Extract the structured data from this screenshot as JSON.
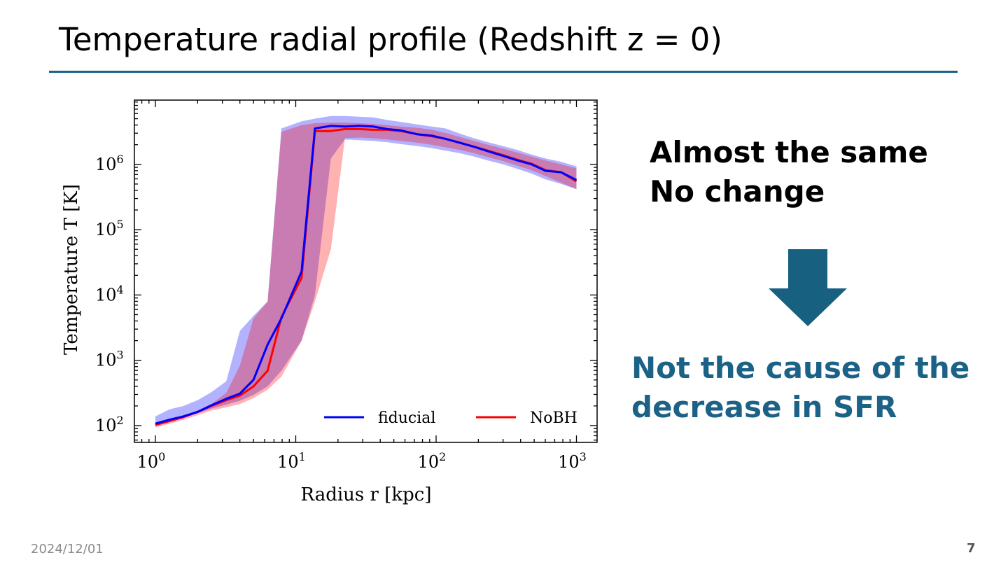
{
  "slide": {
    "title": "Temperature radial profile (Redshift z = 0)",
    "message_line1": "Almost the same",
    "message_line2": "No change",
    "conclusion_line1": "Not the cause of the",
    "conclusion_line2": "decrease in SFR",
    "date": "2024/12/01",
    "page_number": "7",
    "arrow_icon": "arrow-down-icon",
    "colors": {
      "accent": "#1b6286",
      "arrow": "#17607f"
    }
  },
  "chart_data": {
    "type": "line",
    "xlabel": "Radius r [kpc]",
    "ylabel": "Temperature T [K]",
    "xscale": "log",
    "yscale": "log",
    "xlim": [
      0.7,
      1300
    ],
    "ylim": [
      60,
      8000000
    ],
    "x_ticks": [
      {
        "base": "10",
        "exp": "0",
        "value": 1
      },
      {
        "base": "10",
        "exp": "1",
        "value": 10
      },
      {
        "base": "10",
        "exp": "2",
        "value": 100
      },
      {
        "base": "10",
        "exp": "3",
        "value": 1000
      }
    ],
    "y_ticks": [
      {
        "base": "10",
        "exp": "2",
        "value": 100
      },
      {
        "base": "10",
        "exp": "3",
        "value": 1000
      },
      {
        "base": "10",
        "exp": "4",
        "value": 10000
      },
      {
        "base": "10",
        "exp": "5",
        "value": 100000
      },
      {
        "base": "10",
        "exp": "6",
        "value": 1000000
      }
    ],
    "grid": false,
    "legend_position": "bottom-right",
    "x": [
      1,
      1.26,
      1.58,
      2.0,
      2.5,
      3.2,
      4.0,
      5.0,
      6.3,
      7.9,
      11,
      13.7,
      17.8,
      22.4,
      28.2,
      35.5,
      44.7,
      56.2,
      74,
      93,
      117,
      148,
      186,
      234,
      300,
      380,
      479,
      603,
      776,
      1000
    ],
    "series": [
      {
        "name": "fiducial",
        "color": "#0000ff",
        "band_color": "#0000ff",
        "log10_values": [
          2.03,
          2.09,
          2.14,
          2.21,
          2.31,
          2.41,
          2.49,
          2.7,
          3.24,
          3.64,
          4.36,
          6.55,
          6.59,
          6.58,
          6.59,
          6.58,
          6.54,
          6.52,
          6.46,
          6.44,
          6.39,
          6.33,
          6.27,
          6.2,
          6.13,
          6.06,
          6.0,
          5.9,
          5.88,
          5.76
        ],
        "log10_band_upper": [
          2.14,
          2.25,
          2.3,
          2.39,
          2.51,
          2.68,
          3.45,
          3.68,
          3.9,
          6.55,
          6.66,
          6.7,
          6.74,
          6.74,
          6.73,
          6.72,
          6.68,
          6.65,
          6.61,
          6.58,
          6.55,
          6.47,
          6.4,
          6.34,
          6.28,
          6.22,
          6.15,
          6.09,
          6.04,
          5.97
        ],
        "log10_band_lower": [
          2.0,
          2.06,
          2.12,
          2.19,
          2.26,
          2.32,
          2.38,
          2.47,
          2.6,
          2.84,
          3.3,
          4.0,
          6.09,
          6.38,
          6.37,
          6.36,
          6.34,
          6.31,
          6.28,
          6.25,
          6.21,
          6.17,
          6.12,
          6.06,
          6.0,
          5.93,
          5.86,
          5.77,
          5.7,
          5.62
        ]
      },
      {
        "name": "NoBH",
        "color": "#ff0000",
        "band_color": "#ff0000",
        "log10_values": [
          2.01,
          2.07,
          2.13,
          2.21,
          2.3,
          2.39,
          2.46,
          2.6,
          2.84,
          3.66,
          4.26,
          6.51,
          6.51,
          6.54,
          6.54,
          6.53,
          6.53,
          6.51,
          6.46,
          6.43,
          6.39,
          6.33,
          6.27,
          6.21,
          6.14,
          6.07,
          6.01,
          5.91,
          5.88,
          5.74
        ],
        "log10_band_upper": [
          2.04,
          2.1,
          2.16,
          2.23,
          2.33,
          2.5,
          2.92,
          3.64,
          3.9,
          6.5,
          6.6,
          6.63,
          6.64,
          6.64,
          6.63,
          6.62,
          6.6,
          6.58,
          6.56,
          6.53,
          6.48,
          6.42,
          6.36,
          6.3,
          6.24,
          6.18,
          6.12,
          6.06,
          6.0,
          5.94
        ],
        "log10_band_lower": [
          1.97,
          2.03,
          2.09,
          2.16,
          2.23,
          2.28,
          2.33,
          2.42,
          2.55,
          2.75,
          3.3,
          3.9,
          4.7,
          6.4,
          6.41,
          6.4,
          6.38,
          6.36,
          6.33,
          6.3,
          6.26,
          6.22,
          6.17,
          6.11,
          6.05,
          5.98,
          5.91,
          5.82,
          5.72,
          5.62
        ]
      }
    ]
  }
}
